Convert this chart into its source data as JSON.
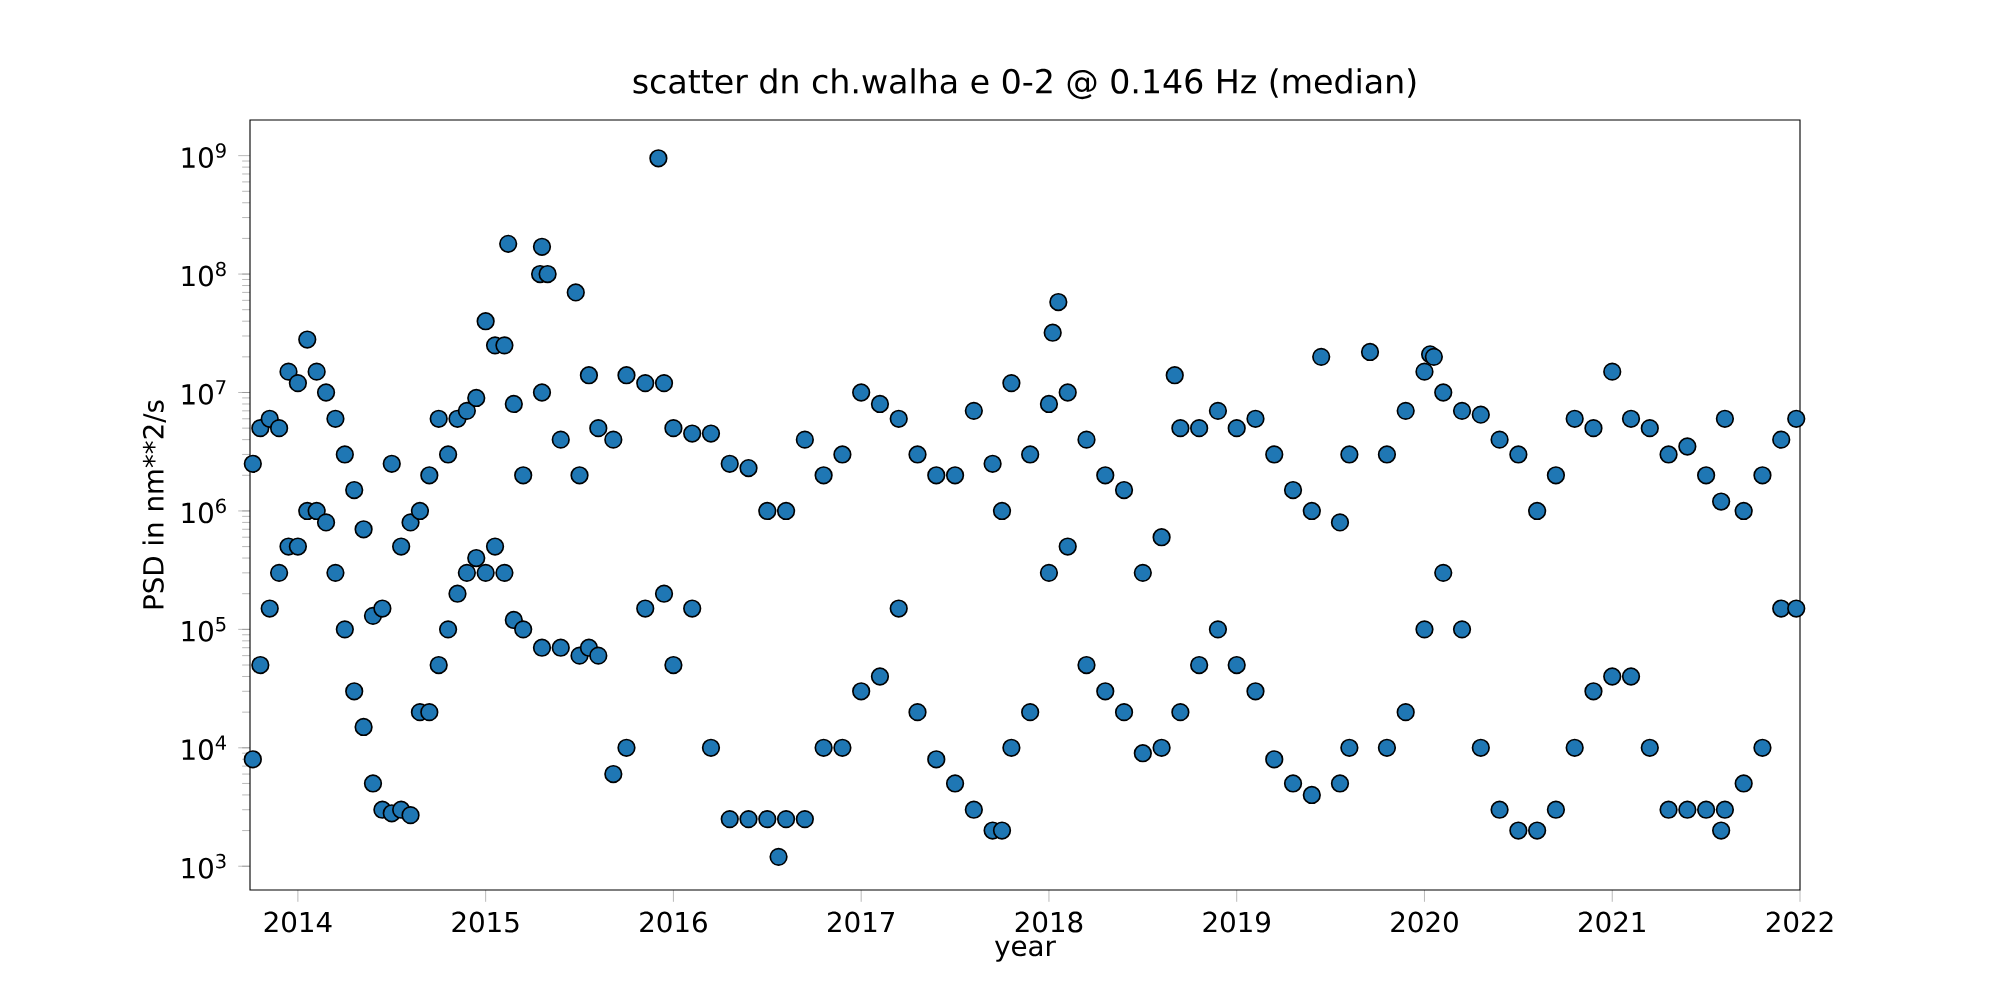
{
  "chart_data": {
    "type": "scatter",
    "title": "scatter dn ch.walha e 0-2 @ 0.146 Hz (median)",
    "xlabel": "year",
    "ylabel": "PSD in nm**2/s",
    "color": "#1f77b4",
    "marker": "circle",
    "log": "y",
    "xlim": [
      2013.745,
      2022
    ],
    "ylim": [
      630,
      2000000000
    ],
    "xticks": [
      2014,
      2015,
      2016,
      2017,
      2018,
      2019,
      2020,
      2021,
      2022
    ],
    "yticks": [
      {
        "value": 1000,
        "label": "10$^{3}$"
      },
      {
        "value": 10000,
        "label": "10$^{4}$"
      },
      {
        "value": 100000,
        "label": "10$^{5}$"
      },
      {
        "value": 1000000,
        "label": "10$^{6}$"
      },
      {
        "value": 10000000,
        "label": "10$^{7}$"
      },
      {
        "value": 100000000,
        "label": "10$^{8}$"
      },
      {
        "value": 1000000000,
        "label": "10$^{9}$"
      }
    ],
    "x": [
      2013.76,
      2013.76,
      2013.8,
      2013.8,
      2013.85,
      2013.85,
      2013.9,
      2013.9,
      2013.95,
      2013.95,
      2014.0,
      2014.0,
      2014.05,
      2014.05,
      2014.1,
      2014.1,
      2014.15,
      2014.15,
      2014.2,
      2014.2,
      2014.25,
      2014.25,
      2014.3,
      2014.3,
      2014.35,
      2014.35,
      2014.4,
      2014.4,
      2014.45,
      2014.45,
      2014.5,
      2014.5,
      2014.55,
      2014.55,
      2014.6,
      2014.6,
      2014.65,
      2014.65,
      2014.7,
      2014.7,
      2014.75,
      2014.75,
      2014.8,
      2014.8,
      2014.85,
      2014.85,
      2014.9,
      2014.9,
      2014.95,
      2014.95,
      2015.0,
      2015.0,
      2015.05,
      2015.05,
      2015.1,
      2015.1,
      2015.12,
      2015.15,
      2015.15,
      2015.2,
      2015.2,
      2015.29,
      2015.3,
      2015.3,
      2015.3,
      2015.33,
      2015.4,
      2015.4,
      2015.48,
      2015.5,
      2015.5,
      2015.55,
      2015.55,
      2015.6,
      2015.6,
      2015.68,
      2015.68,
      2015.75,
      2015.75,
      2015.85,
      2015.85,
      2015.92,
      2015.95,
      2015.95,
      2016.0,
      2016.0,
      2016.1,
      2016.1,
      2016.2,
      2016.2,
      2016.3,
      2016.3,
      2016.4,
      2016.4,
      2016.5,
      2016.5,
      2016.56,
      2016.6,
      2016.6,
      2016.7,
      2016.7,
      2016.8,
      2016.8,
      2016.9,
      2016.9,
      2017.0,
      2017.0,
      2017.1,
      2017.1,
      2017.2,
      2017.2,
      2017.3,
      2017.3,
      2017.4,
      2017.4,
      2017.5,
      2017.5,
      2017.6,
      2017.6,
      2017.7,
      2017.7,
      2017.75,
      2017.75,
      2017.8,
      2017.8,
      2017.9,
      2017.9,
      2018.0,
      2018.0,
      2018.02,
      2018.05,
      2018.1,
      2018.1,
      2018.2,
      2018.2,
      2018.3,
      2018.3,
      2018.4,
      2018.4,
      2018.5,
      2018.5,
      2018.6,
      2018.6,
      2018.67,
      2018.7,
      2018.7,
      2018.8,
      2018.8,
      2018.9,
      2018.9,
      2019.0,
      2019.0,
      2019.1,
      2019.1,
      2019.2,
      2019.2,
      2019.3,
      2019.3,
      2019.4,
      2019.4,
      2019.45,
      2019.55,
      2019.55,
      2019.6,
      2019.6,
      2019.71,
      2019.8,
      2019.8,
      2019.9,
      2019.9,
      2020.0,
      2020.0,
      2020.03,
      2020.05,
      2020.1,
      2020.1,
      2020.2,
      2020.2,
      2020.3,
      2020.3,
      2020.4,
      2020.4,
      2020.5,
      2020.5,
      2020.6,
      2020.6,
      2020.7,
      2020.7,
      2020.8,
      2020.8,
      2020.9,
      2020.9,
      2021.0,
      2021.0,
      2021.1,
      2021.1,
      2021.2,
      2021.2,
      2021.3,
      2021.3,
      2021.4,
      2021.4,
      2021.5,
      2021.5,
      2021.58,
      2021.58,
      2021.6,
      2021.6,
      2021.7,
      2021.7,
      2021.8,
      2021.8,
      2021.9,
      2021.9,
      2021.98,
      2021.98
    ],
    "values": [
      2500000,
      8000,
      5000000,
      50000,
      6000000,
      150000,
      5000000,
      300000,
      15000000,
      500000,
      12000000,
      500000,
      28000000,
      1000000,
      15000000,
      1000000,
      10000000,
      800000,
      6000000,
      300000,
      3000000,
      100000,
      1500000,
      30000,
      700000,
      15000,
      130000,
      5000,
      150000,
      3000,
      2500000,
      2800,
      500000,
      3000,
      800000,
      2700,
      1000000,
      20000,
      2000000,
      20000,
      6000000,
      50000,
      3000000,
      100000,
      6000000,
      200000,
      7000000,
      300000,
      9000000,
      400000,
      40000000,
      300000,
      25000000,
      500000,
      25000000,
      300000,
      180000000,
      8000000,
      120000,
      2000000,
      100000,
      100000000,
      170000000,
      10000000,
      70000,
      100000000,
      4000000,
      70000,
      70000000,
      2000000,
      60000,
      14000000,
      70000,
      5000000,
      60000,
      4000000,
      6000,
      14000000,
      10000,
      12000000,
      150000,
      950000000,
      12000000,
      200000,
      5000000,
      50000,
      4500000,
      150000,
      4500000,
      10000,
      2500000,
      2500,
      2300000,
      2500,
      1000000,
      2500,
      1200,
      1000000,
      2500,
      4000000,
      2500,
      2000000,
      10000,
      3000000,
      10000,
      10000000,
      30000,
      8000000,
      40000,
      6000000,
      150000,
      3000000,
      20000,
      2000000,
      8000,
      2000000,
      5000,
      7000000,
      3000,
      2500000,
      2000,
      1000000,
      2000,
      12000000,
      10000,
      3000000,
      20000,
      8000000,
      300000,
      32000000,
      58000000,
      10000000,
      500000,
      4000000,
      50000,
      2000000,
      30000,
      1500000,
      20000,
      300000,
      9000,
      600000,
      10000,
      14000000,
      5000000,
      20000,
      5000000,
      50000,
      7000000,
      100000,
      5000000,
      50000,
      6000000,
      30000,
      3000000,
      8000,
      1500000,
      5000,
      1000000,
      4000,
      20000000,
      800000,
      5000,
      3000000,
      10000,
      22000000,
      3000000,
      10000,
      7000000,
      20000,
      15000000,
      100000,
      21000000,
      20000000,
      10000000,
      300000,
      7000000,
      100000,
      6500000,
      10000,
      4000000,
      3000,
      3000000,
      2000,
      1000000,
      2000,
      2000000,
      3000,
      6000000,
      10000,
      5000000,
      30000,
      15000000,
      40000,
      6000000,
      40000,
      5000000,
      10000,
      3000000,
      3000,
      3500000,
      3000,
      2000000,
      3000,
      1200000,
      2000,
      6000000,
      3000,
      1000000,
      5000,
      2000000,
      10000,
      4000000,
      150000,
      6000000,
      150000
    ]
  }
}
